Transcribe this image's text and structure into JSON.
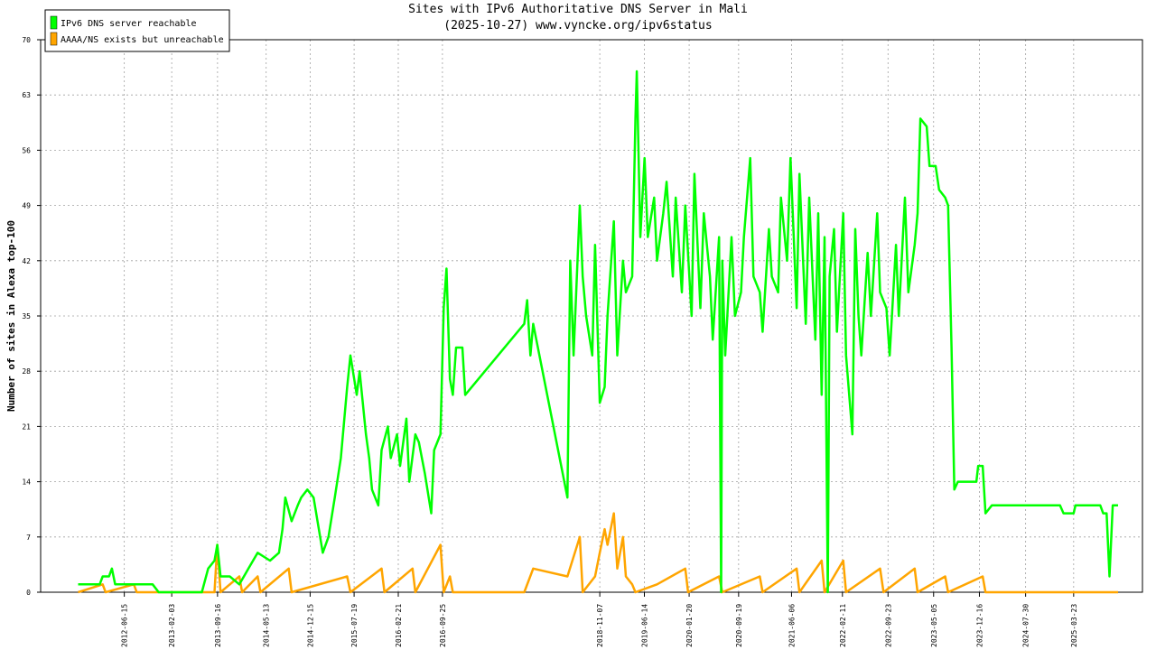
{
  "chart_data": {
    "type": "line",
    "title": "Sites with IPv6 Authoritative DNS Server in Mali",
    "subtitle": "(2025-10-27) www.vyncke.org/ipv6status",
    "y_label": "Number of sites in Alexa top-100",
    "xlim": [
      "2011-05-01",
      "2026-02-24"
    ],
    "xticks": [
      "2012-06-15",
      "2013-02-03",
      "2013-09-16",
      "2014-05-13",
      "2014-12-15",
      "2015-07-19",
      "2016-02-21",
      "2016-09-25",
      "2018-11-07",
      "2019-06-14",
      "2020-01-20",
      "2020-09-19",
      "2021-06-06",
      "2022-02-11",
      "2022-09-23",
      "2023-05-05",
      "2023-12-16",
      "2024-07-30",
      "2025-03-23"
    ],
    "ylim": [
      0,
      70
    ],
    "yticks": [
      0,
      7,
      14,
      21,
      28,
      35,
      42,
      49,
      56,
      63,
      70
    ],
    "grid": true,
    "legend": "top-left",
    "series": [
      {
        "name": "IPv6 DNS server reachable",
        "color": "#00ff00",
        "x": [
          "2011-11-01",
          "2012-02-15",
          "2012-03-01",
          "2012-04-01",
          "2012-04-15",
          "2012-05-01",
          "2012-08-01",
          "2012-11-01",
          "2012-12-01",
          "2013-07-01",
          "2013-08-01",
          "2013-09-01",
          "2013-09-15",
          "2013-10-01",
          "2013-11-15",
          "2014-01-01",
          "2014-02-15",
          "2014-04-01",
          "2014-06-01",
          "2014-07-15",
          "2014-08-01",
          "2014-08-15",
          "2014-09-15",
          "2014-10-15",
          "2014-11-01",
          "2014-12-01",
          "2015-01-01",
          "2015-02-15",
          "2015-03-15",
          "2015-04-15",
          "2015-05-15",
          "2015-06-15",
          "2015-07-01",
          "2015-08-01",
          "2015-08-15",
          "2015-09-15",
          "2015-10-01",
          "2015-10-15",
          "2015-11-15",
          "2015-12-01",
          "2016-01-01",
          "2016-01-15",
          "2016-02-15",
          "2016-03-01",
          "2016-04-01",
          "2016-04-15",
          "2016-05-15",
          "2016-06-01",
          "2016-07-01",
          "2016-08-01",
          "2016-08-15",
          "2016-09-15",
          "2016-10-01",
          "2016-10-15",
          "2016-11-01",
          "2016-11-15",
          "2016-12-01",
          "2017-01-01",
          "2017-01-15",
          "2017-11-01",
          "2017-11-15",
          "2017-12-01",
          "2017-12-15",
          "2018-06-01",
          "2018-06-15",
          "2018-07-01",
          "2018-08-01",
          "2018-08-15",
          "2018-09-01",
          "2018-10-01",
          "2018-10-15",
          "2018-11-07",
          "2018-12-01",
          "2018-12-15",
          "2019-01-15",
          "2019-02-01",
          "2019-03-01",
          "2019-03-15",
          "2019-04-15",
          "2019-05-01",
          "2019-05-08",
          "2019-05-25",
          "2019-06-15",
          "2019-07-01",
          "2019-08-01",
          "2019-08-15",
          "2019-09-15",
          "2019-10-01",
          "2019-11-01",
          "2019-11-15",
          "2019-12-15",
          "2020-01-01",
          "2020-02-01",
          "2020-02-15",
          "2020-03-15",
          "2020-04-01",
          "2020-05-01",
          "2020-05-15",
          "2020-06-15",
          "2020-06-25",
          "2020-07-01",
          "2020-07-15",
          "2020-08-15",
          "2020-09-01",
          "2020-10-01",
          "2020-10-15",
          "2020-11-15",
          "2020-12-01",
          "2021-01-01",
          "2021-01-15",
          "2021-02-15",
          "2021-03-01",
          "2021-04-01",
          "2021-04-15",
          "2021-05-15",
          "2021-06-01",
          "2021-07-01",
          "2021-07-15",
          "2021-08-15",
          "2021-09-01",
          "2021-10-01",
          "2021-10-15",
          "2021-11-01",
          "2021-11-15",
          "2021-12-01",
          "2021-12-10",
          "2022-01-01",
          "2022-01-15",
          "2022-02-15",
          "2022-03-01",
          "2022-04-01",
          "2022-04-15",
          "2022-05-01",
          "2022-05-15",
          "2022-06-15",
          "2022-07-01",
          "2022-08-01",
          "2022-08-15",
          "2022-09-15",
          "2022-10-01",
          "2022-11-01",
          "2022-11-15",
          "2022-12-15",
          "2023-01-01",
          "2023-02-01",
          "2023-02-15",
          "2023-03-01",
          "2023-04-01",
          "2023-04-15",
          "2023-05-15",
          "2023-06-01",
          "2023-07-01",
          "2023-07-15",
          "2023-08-01",
          "2023-08-15",
          "2023-09-01",
          "2023-12-01",
          "2023-12-10",
          "2024-01-01",
          "2024-01-15",
          "2024-02-15",
          "2024-07-01",
          "2025-01-15",
          "2025-02-01",
          "2025-03-23",
          "2025-04-01",
          "2025-08-01",
          "2025-08-15",
          "2025-09-01",
          "2025-09-15",
          "2025-10-01",
          "2025-10-27"
        ],
        "values": [
          1,
          1,
          2,
          2,
          3,
          1,
          1,
          1,
          0,
          0,
          3,
          4,
          6,
          2,
          2,
          1,
          3,
          5,
          4,
          5,
          8,
          12,
          9,
          11,
          12,
          13,
          12,
          5,
          7,
          12,
          17,
          26,
          30,
          25,
          28,
          20,
          17,
          13,
          11,
          18,
          21,
          17,
          20,
          16,
          22,
          14,
          20,
          19,
          15,
          10,
          18,
          20,
          36,
          41,
          27,
          25,
          31,
          31,
          25,
          34,
          37,
          30,
          34,
          12,
          42,
          30,
          49,
          40,
          35,
          30,
          44,
          24,
          26,
          35,
          47,
          30,
          42,
          38,
          40,
          60,
          66,
          45,
          55,
          45,
          50,
          42,
          48,
          52,
          40,
          50,
          38,
          49,
          35,
          53,
          36,
          48,
          40,
          32,
          45,
          0,
          42,
          30,
          45,
          35,
          38,
          45,
          55,
          40,
          38,
          33,
          46,
          40,
          38,
          50,
          42,
          55,
          36,
          53,
          34,
          50,
          32,
          48,
          25,
          45,
          0,
          40,
          46,
          33,
          48,
          30,
          20,
          46,
          35,
          30,
          43,
          35,
          48,
          38,
          36,
          30,
          44,
          35,
          50,
          38,
          44,
          48,
          60,
          59,
          54,
          54,
          51,
          50,
          49,
          31,
          13,
          14,
          14,
          16,
          16,
          10,
          11,
          11,
          11,
          10,
          10,
          11,
          11,
          10,
          10,
          2,
          11,
          11
        ]
      },
      {
        "name": "AAAA/NS exists but unreachable",
        "color": "#ffa500",
        "x": [
          "2011-11-01",
          "2012-03-01",
          "2012-03-15",
          "2012-08-01",
          "2012-08-15",
          "2013-09-01",
          "2013-09-15",
          "2013-10-01",
          "2014-01-01",
          "2014-01-15",
          "2014-04-01",
          "2014-04-15",
          "2014-09-01",
          "2014-09-15",
          "2015-06-15",
          "2015-07-01",
          "2015-12-01",
          "2015-12-15",
          "2016-05-01",
          "2016-05-15",
          "2016-09-15",
          "2016-10-01",
          "2016-11-01",
          "2016-11-15",
          "2017-11-01",
          "2017-12-15",
          "2018-06-01",
          "2018-08-01",
          "2018-08-15",
          "2018-10-15",
          "2018-11-07",
          "2018-12-01",
          "2018-12-15",
          "2019-01-15",
          "2019-02-01",
          "2019-03-01",
          "2019-03-15",
          "2019-04-15",
          "2019-05-01",
          "2019-08-15",
          "2020-01-01",
          "2020-01-15",
          "2020-06-15",
          "2020-07-01",
          "2021-01-01",
          "2021-01-15",
          "2021-07-01",
          "2021-07-15",
          "2021-11-01",
          "2021-11-15",
          "2022-02-15",
          "2022-03-01",
          "2022-08-15",
          "2022-09-01",
          "2023-02-01",
          "2023-02-15",
          "2023-07-01",
          "2023-07-15",
          "2024-01-01",
          "2024-01-15",
          "2025-10-27"
        ],
        "values": [
          0,
          1,
          0,
          1,
          0,
          0,
          6,
          0,
          2,
          0,
          2,
          0,
          3,
          0,
          2,
          0,
          3,
          0,
          3,
          0,
          6,
          0,
          2,
          0,
          0,
          3,
          2,
          7,
          0,
          2,
          5,
          8,
          6,
          10,
          3,
          7,
          2,
          1,
          0,
          1,
          3,
          0,
          2,
          0,
          2,
          0,
          3,
          0,
          4,
          0,
          4,
          0,
          3,
          0,
          3,
          0,
          2,
          0,
          2,
          0,
          0
        ]
      }
    ]
  }
}
